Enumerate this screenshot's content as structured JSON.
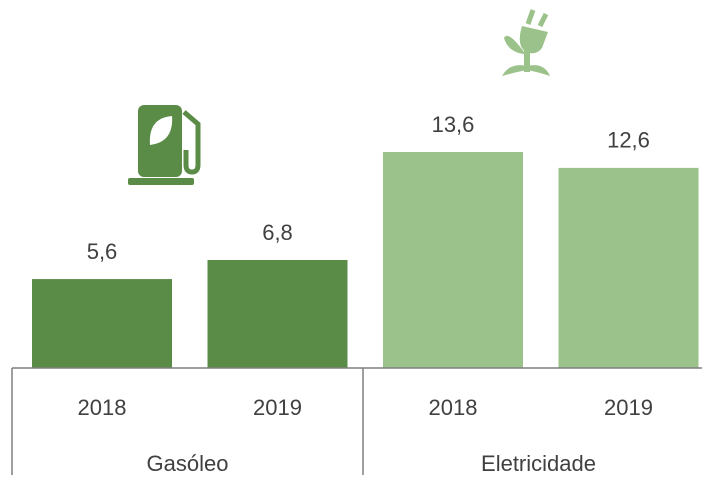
{
  "chart_data": {
    "type": "bar",
    "groups": [
      {
        "label": "Gasóleo",
        "color": "#5b8c47",
        "categories": [
          "2018",
          "2019"
        ],
        "values": [
          5.6,
          6.8
        ],
        "value_labels": [
          "5,6",
          "6,8"
        ]
      },
      {
        "label": "Eletricidade",
        "color": "#9bc28a",
        "categories": [
          "2018",
          "2019"
        ],
        "values": [
          13.6,
          12.6
        ],
        "value_labels": [
          "13,6",
          "12,6"
        ]
      }
    ]
  }
}
